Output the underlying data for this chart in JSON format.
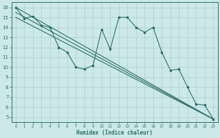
{
  "xlabel": "Humidex (Indice chaleur)",
  "bg_color": "#cce8e8",
  "grid_color": "#aacece",
  "line_color": "#2a6e6a",
  "xlim": [
    -0.5,
    23.5
  ],
  "ylim": [
    4.5,
    16.5
  ],
  "xticks": [
    0,
    1,
    2,
    3,
    4,
    5,
    6,
    7,
    8,
    9,
    10,
    11,
    12,
    13,
    14,
    15,
    16,
    17,
    18,
    19,
    20,
    21,
    22,
    23
  ],
  "yticks": [
    5,
    6,
    7,
    8,
    9,
    10,
    11,
    12,
    13,
    14,
    15,
    16
  ],
  "wavy_line": {
    "x": [
      0,
      1,
      2,
      3,
      4,
      5,
      6,
      7,
      8,
      9,
      10,
      11,
      12,
      13,
      14,
      15,
      16,
      17,
      18,
      19,
      20,
      21,
      22,
      23
    ],
    "y": [
      16,
      14.9,
      15.1,
      14.2,
      14.0,
      12.0,
      11.5,
      10.0,
      9.8,
      10.2,
      13.8,
      11.8,
      15.0,
      15.0,
      14.0,
      13.5,
      14.0,
      11.5,
      9.7,
      9.8,
      8.0,
      6.3,
      6.2,
      4.8
    ]
  },
  "straight_lines": [
    {
      "x": [
        0,
        23
      ],
      "y": [
        16.0,
        4.8
      ]
    },
    {
      "x": [
        0,
        23
      ],
      "y": [
        15.5,
        4.8
      ]
    },
    {
      "x": [
        0,
        23
      ],
      "y": [
        15.0,
        4.8
      ]
    }
  ]
}
